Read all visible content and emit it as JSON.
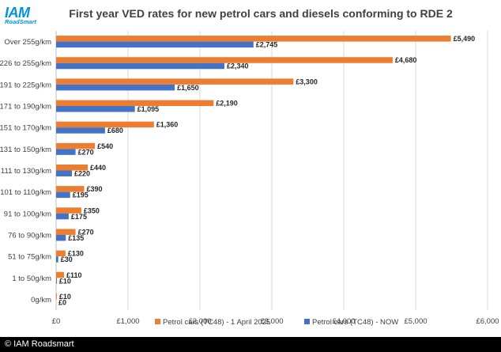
{
  "logo": {
    "main": "IAM",
    "sub": "RoadSmart"
  },
  "footer": {
    "text": "© IAM Roadsmart"
  },
  "colors": {
    "petrol_2025": "#ed7d31",
    "petrol_now": "#4472c4",
    "grid": "#d9d9d9",
    "text": "#404040"
  },
  "chart_data": {
    "type": "bar",
    "orientation": "horizontal",
    "title": "First year VED rates for new petrol cars and diesels conforming to RDE 2",
    "categories": [
      "Over 255g/km",
      "226 to 255g/km",
      "191 to 225g/km",
      "171 to 190g/km",
      "151 to 170g/km",
      "131 to 150g/km",
      "111 to 130g/km",
      "101 to 110g/km",
      "91 to 100g/km",
      "76 to 90g/km",
      "51 to 75g/km",
      "1 to 50g/km",
      "0g/km"
    ],
    "series": [
      {
        "name": "Petrol cars (TC48) - 1 April 2025",
        "color": "#ed7d31",
        "values": [
          5490,
          4680,
          3300,
          2190,
          1360,
          540,
          440,
          390,
          350,
          270,
          130,
          110,
          10
        ],
        "labels": [
          "£5,490",
          "£4,680",
          "£3,300",
          "£2,190",
          "£1,360",
          "£540",
          "£440",
          "£390",
          "£350",
          "£270",
          "£130",
          "£110",
          "£10"
        ]
      },
      {
        "name": "Petrol cars (TC48) - NOW",
        "color": "#4472c4",
        "values": [
          2745,
          2340,
          1650,
          1095,
          680,
          270,
          220,
          195,
          175,
          135,
          30,
          10,
          0
        ],
        "labels": [
          "£2,745",
          "£2,340",
          "£1,650",
          "£1,095",
          "£680",
          "£270",
          "£220",
          "£195",
          "£175",
          "£135",
          "£30",
          "£10",
          "£0"
        ]
      }
    ],
    "xlim": [
      0,
      6000
    ],
    "xticks": [
      0,
      1000,
      2000,
      3000,
      4000,
      5000,
      6000
    ],
    "xtick_labels": [
      "£0",
      "£1,000",
      "£2,000",
      "£3,000",
      "£4,000",
      "£5,000",
      "£6,000"
    ],
    "grid": true,
    "legend_position": "bottom"
  }
}
